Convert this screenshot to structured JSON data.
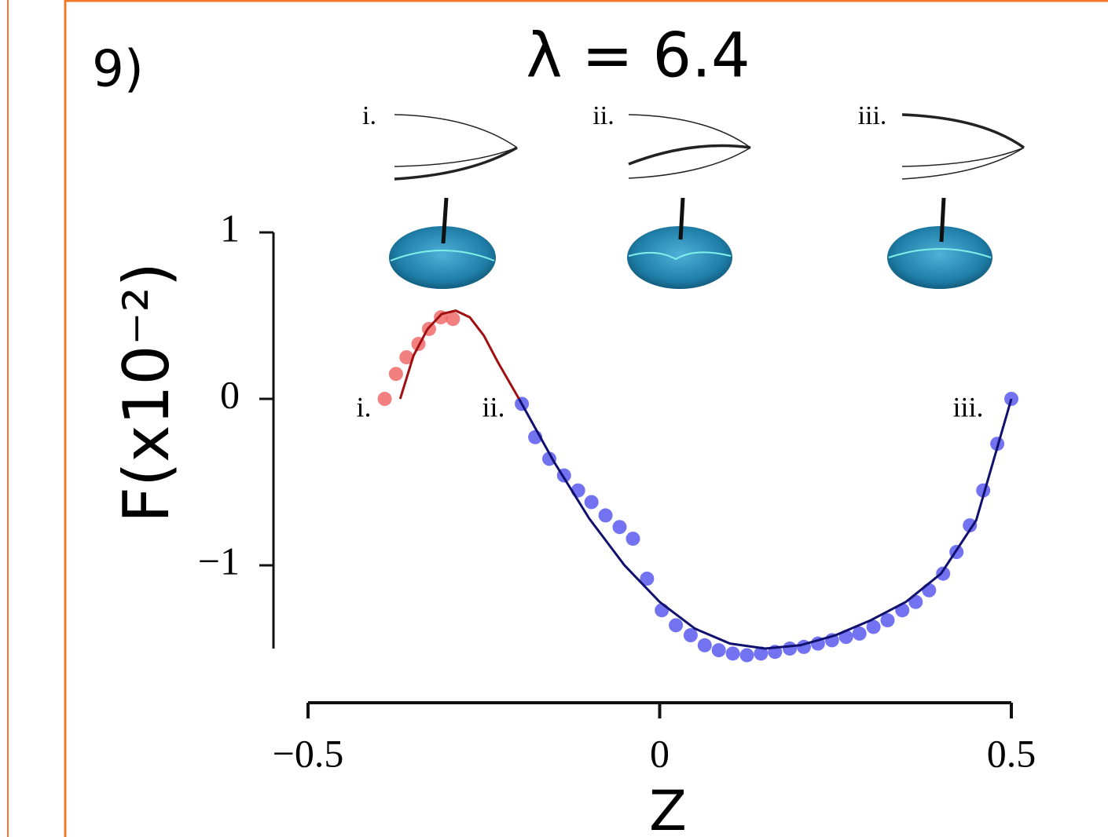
{
  "chart_data": {
    "type": "scatter",
    "panel_label": "9)",
    "title": "λ = 6.4",
    "ylabel": "F(x10⁻²)",
    "xlabel": "Z",
    "xlim": [
      -0.5,
      0.5
    ],
    "ylim": [
      -1.5,
      1
    ],
    "xticks": [
      {
        "value": -0.5,
        "label": "−0.5"
      },
      0,
      0.5
    ],
    "yticks": [
      1,
      0,
      {
        "value": -1,
        "label": "−1"
      }
    ],
    "point_labels": [
      "i.",
      "ii.",
      "iii."
    ],
    "shape_labels": [
      "i.",
      "ii.",
      "iii."
    ],
    "series": [
      {
        "style": "markers",
        "color": "#f06a6a",
        "x": [
          -0.391,
          -0.375,
          -0.36,
          -0.343,
          -0.328,
          -0.311,
          -0.294
        ],
        "values": [
          0.0,
          0.15,
          0.25,
          0.33,
          0.42,
          0.49,
          0.48
        ]
      },
      {
        "style": "markers",
        "color": "#5a5af0",
        "x": [
          -0.196,
          -0.177,
          -0.157,
          -0.136,
          -0.116,
          -0.097,
          -0.077,
          -0.057,
          -0.038,
          -0.018,
          0.003,
          0.023,
          0.044,
          0.064,
          0.084,
          0.104,
          0.124,
          0.144,
          0.164,
          0.185,
          0.205,
          0.225,
          0.245,
          0.265,
          0.284,
          0.304,
          0.324,
          0.345,
          0.364,
          0.383,
          0.403,
          0.422,
          0.441,
          0.46,
          0.48,
          0.5
        ],
        "values": [
          -0.03,
          -0.23,
          -0.36,
          -0.46,
          -0.55,
          -0.62,
          -0.7,
          -0.77,
          -0.84,
          -1.08,
          -1.27,
          -1.36,
          -1.42,
          -1.48,
          -1.51,
          -1.53,
          -1.54,
          -1.53,
          -1.52,
          -1.5,
          -1.49,
          -1.47,
          -1.45,
          -1.43,
          -1.41,
          -1.37,
          -1.33,
          -1.27,
          -1.22,
          -1.15,
          -1.05,
          -0.92,
          -0.76,
          -0.55,
          -0.27,
          0.0
        ]
      },
      {
        "style": "line",
        "color": "#a01010",
        "x": [
          -0.369,
          -0.35,
          -0.33,
          -0.31,
          -0.29,
          -0.27,
          -0.25,
          -0.23,
          -0.2
        ],
        "values": [
          0.0,
          0.26,
          0.42,
          0.51,
          0.53,
          0.49,
          0.38,
          0.22,
          0.0
        ]
      },
      {
        "style": "line",
        "color": "#10106e",
        "x": [
          -0.2,
          -0.15,
          -0.1,
          -0.05,
          0.0,
          0.05,
          0.1,
          0.15,
          0.2,
          0.25,
          0.3,
          0.35,
          0.4,
          0.45,
          0.5
        ],
        "values": [
          0.0,
          -0.38,
          -0.72,
          -1.0,
          -1.22,
          -1.38,
          -1.47,
          -1.5,
          -1.48,
          -1.42,
          -1.33,
          -1.22,
          -1.05,
          -0.73,
          0.0
        ]
      }
    ]
  }
}
